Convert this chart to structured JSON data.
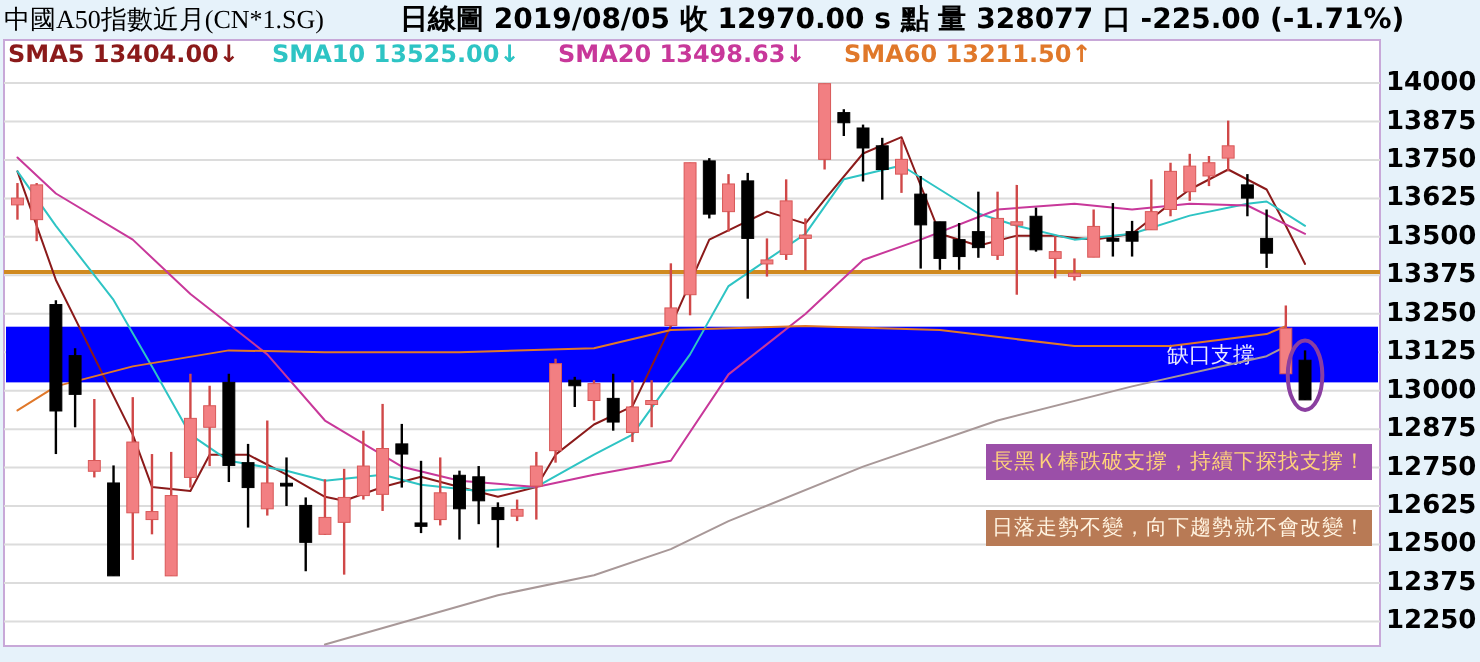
{
  "chart_data": {
    "type": "candlestick",
    "title": "中國A50指數近月(CN*1.SG)",
    "subtitle": "日線圖  2019/08/05  收 12970.00 s 點  量 328077 口  -225.00 (-1.71%)",
    "categories": [
      null,
      null,
      null,
      null,
      null,
      null,
      null,
      null,
      null,
      null,
      null,
      null,
      null,
      null,
      null,
      null,
      null,
      null,
      null,
      null,
      null,
      null,
      null,
      null,
      null,
      null,
      null,
      null,
      null,
      null,
      null,
      null,
      null,
      null,
      null,
      null,
      null,
      null,
      null,
      null,
      null,
      null,
      null,
      null,
      null,
      null,
      null,
      null,
      null,
      null,
      null,
      null,
      null,
      null,
      null,
      null,
      null,
      null,
      null,
      null,
      null,
      null,
      null,
      null,
      null,
      null,
      null,
      null
    ],
    "ohlc": [
      [
        13604,
        13675,
        13556,
        13626
      ],
      [
        13556,
        13675,
        13486,
        13669
      ],
      [
        13280,
        13294,
        12794,
        12934
      ],
      [
        13114,
        13138,
        12881,
        12988
      ],
      [
        12738,
        12973,
        12718,
        12773
      ],
      [
        12700,
        12757,
        12398,
        12398
      ],
      [
        12603,
        12979,
        12450,
        12833
      ],
      [
        12581,
        12794,
        12533,
        12607
      ],
      [
        12398,
        12801,
        12398,
        12659
      ],
      [
        12718,
        13055,
        12685,
        12910
      ],
      [
        12881,
        13016,
        12755,
        12951
      ],
      [
        13027,
        13055,
        12703,
        12757
      ],
      [
        12766,
        12827,
        12555,
        12685
      ],
      [
        12616,
        12903,
        12594,
        12700
      ],
      [
        12699,
        12783,
        12625,
        12690
      ],
      [
        12627,
        12653,
        12413,
        12507
      ],
      [
        12533,
        12712,
        12531,
        12588
      ],
      [
        12572,
        12746,
        12402,
        12653
      ],
      [
        12659,
        12870,
        12646,
        12755
      ],
      [
        12663,
        12957,
        12609,
        12812
      ],
      [
        12827,
        12892,
        12685,
        12794
      ],
      [
        12570,
        12772,
        12537,
        12559
      ],
      [
        12581,
        12783,
        12562,
        12668
      ],
      [
        12725,
        12740,
        12516,
        12616
      ],
      [
        12720,
        12755,
        12566,
        12642
      ],
      [
        12620,
        12637,
        12490,
        12581
      ],
      [
        12592,
        12646,
        12576,
        12614
      ],
      [
        12690,
        12801,
        12581,
        12755
      ],
      [
        12805,
        13104,
        12766,
        13088
      ],
      [
        13034,
        13045,
        12947,
        13016
      ],
      [
        12968,
        13034,
        12903,
        13023
      ],
      [
        12975,
        13055,
        12870,
        12898
      ],
      [
        12864,
        13034,
        12833,
        12947
      ],
      [
        12955,
        13034,
        12881,
        12968
      ],
      [
        13212,
        13414,
        13208,
        13269
      ],
      [
        13312,
        13741,
        13245,
        13741
      ],
      [
        13747,
        13756,
        13560,
        13574
      ],
      [
        13582,
        13704,
        13517,
        13672
      ],
      [
        13682,
        13708,
        13299,
        13495
      ],
      [
        13412,
        13495,
        13371,
        13425
      ],
      [
        13443,
        13687,
        13425,
        13617
      ],
      [
        13495,
        13560,
        13391,
        13506
      ],
      [
        13752,
        13998,
        13719,
        13998
      ],
      [
        13904,
        13915,
        13828,
        13871
      ],
      [
        13854,
        13865,
        13680,
        13789
      ],
      [
        13796,
        13822,
        13621,
        13719
      ],
      [
        13704,
        13817,
        13643,
        13752
      ],
      [
        13639,
        13698,
        13397,
        13539
      ],
      [
        13549,
        13549,
        13393,
        13430
      ],
      [
        13491,
        13545,
        13393,
        13436
      ],
      [
        13517,
        13647,
        13432,
        13465
      ],
      [
        13440,
        13647,
        13425,
        13560
      ],
      [
        13538,
        13669,
        13312,
        13549
      ],
      [
        13567,
        13595,
        13452,
        13458
      ],
      [
        13430,
        13502,
        13365,
        13452
      ],
      [
        13371,
        13430,
        13358,
        13382
      ],
      [
        13434,
        13589,
        13434,
        13534
      ],
      [
        13495,
        13610,
        13436,
        13486
      ],
      [
        13517,
        13552,
        13436,
        13486
      ],
      [
        13523,
        13687,
        13523,
        13582
      ],
      [
        13589,
        13741,
        13567,
        13713
      ],
      [
        13647,
        13770,
        13617,
        13730
      ],
      [
        13698,
        13763,
        13665,
        13741
      ],
      [
        13756,
        13878,
        13713,
        13796
      ],
      [
        13669,
        13704,
        13567,
        13626
      ],
      [
        13495,
        13589,
        13399,
        13447
      ],
      [
        13055,
        13277,
        13055,
        13203
      ],
      [
        13099,
        13131,
        12970,
        12970
      ]
    ],
    "series": [
      {
        "name": "SMA5 13404.00↓",
        "type": "line",
        "color": "#8b1a1a",
        "values": [
          13713,
          null,
          13360,
          null,
          null,
          null,
          12857,
          12687,
          null,
          12674,
          12792,
          null,
          12792,
          null,
          12727,
          null,
          12655,
          12642,
          null,
          12687,
          null,
          12720,
          null,
          12687,
          null,
          12655,
          null,
          12687,
          12792,
          null,
          12890,
          null,
          12949,
          null,
          13210,
          null,
          13491,
          null,
          null,
          13582,
          null,
          13543,
          13621,
          null,
          13771,
          null,
          13824,
          13667,
          13510,
          null,
          13471,
          null,
          13504,
          null,
          13504,
          null,
          13491,
          null,
          13510,
          null,
          13608,
          13654,
          null,
          13719,
          null,
          13654,
          13536,
          13412
        ]
      },
      {
        "name": "SMA10 13525.00↓",
        "type": "line",
        "color": "#2ec4c4",
        "values": [
          13713,
          null,
          13536,
          null,
          null,
          13295,
          null,
          13079,
          null,
          12857,
          null,
          12772,
          null,
          null,
          12740,
          null,
          12707,
          null,
          null,
          12727,
          null,
          12694,
          null,
          null,
          12674,
          null,
          null,
          12687,
          null,
          null,
          12792,
          null,
          12857,
          null,
          null,
          13118,
          null,
          13340,
          null,
          null,
          null,
          13510,
          null,
          13687,
          null,
          null,
          13732,
          null,
          13654,
          null,
          13576,
          null,
          13536,
          null,
          null,
          13491,
          null,
          null,
          13510,
          null,
          null,
          13569,
          null,
          null,
          13608,
          13615,
          null,
          13536
        ]
      },
      {
        "name": "SMA20 13498.63↓",
        "type": "line",
        "color": "#c8389a",
        "values": [
          13758,
          null,
          13641,
          null,
          null,
          null,
          13491,
          null,
          null,
          13314,
          null,
          null,
          null,
          13118,
          null,
          null,
          12903,
          null,
          null,
          null,
          12753,
          null,
          null,
          12707,
          null,
          null,
          null,
          12687,
          null,
          null,
          12727,
          null,
          null,
          null,
          12772,
          null,
          null,
          13053,
          null,
          null,
          null,
          13249,
          null,
          null,
          13425,
          null,
          null,
          13491,
          null,
          null,
          null,
          13589,
          null,
          null,
          null,
          13608,
          null,
          null,
          13589,
          null,
          null,
          13608,
          null,
          null,
          13602,
          null,
          null,
          13510
        ]
      },
      {
        "name": "SMA60 13211.50↑",
        "type": "line",
        "color": "#e0782a",
        "values": [
          12936,
          null,
          13014,
          null,
          null,
          null,
          13079,
          null,
          null,
          null,
          null,
          13131,
          null,
          null,
          null,
          null,
          13125,
          null,
          null,
          null,
          null,
          null,
          null,
          13125,
          null,
          null,
          null,
          null,
          null,
          null,
          13138,
          null,
          null,
          null,
          13197,
          null,
          null,
          null,
          null,
          null,
          null,
          13210,
          null,
          null,
          null,
          null,
          null,
          null,
          13197,
          null,
          null,
          null,
          null,
          null,
          null,
          13145,
          null,
          null,
          null,
          null,
          13145,
          null,
          null,
          null,
          null,
          13184,
          13210,
          null
        ]
      },
      {
        "type": "line",
        "color": "#a89898",
        "values": [
          null,
          null,
          null,
          null,
          null,
          null,
          null,
          null,
          null,
          null,
          null,
          null,
          null,
          null,
          null,
          null,
          12175,
          null,
          null,
          null,
          null,
          null,
          null,
          null,
          null,
          12335,
          null,
          null,
          null,
          null,
          12400,
          null,
          null,
          null,
          12485,
          null,
          null,
          12576,
          null,
          null,
          null,
          null,
          null,
          null,
          12753,
          null,
          null,
          null,
          null,
          null,
          null,
          12903,
          null,
          null,
          null,
          null,
          null,
          null,
          13014,
          null,
          null,
          null,
          null,
          null,
          null,
          13112,
          13144,
          null
        ]
      }
    ],
    "ylim": [
      12170,
      14140
    ],
    "yticks": [
      12250,
      12375,
      12500,
      12625,
      12750,
      12875,
      13000,
      13125,
      13250,
      13375,
      13500,
      13625,
      13750,
      13875,
      14000
    ],
    "tick_labels": "y",
    "grid": "y",
    "legend": "top left",
    "ref_lines": [
      {
        "axis": "y",
        "value": 13386,
        "color": "#d08a20"
      }
    ],
    "bands": [
      {
        "axis": "y",
        "from": 13027,
        "to": 13208,
        "label": "缺口支撐",
        "color": "#0000ff"
      }
    ],
    "annotations": [
      "長黑Ｋ棒跌破支撐，持續下探找支撐！",
      "日落走勢不變，向下趨勢就不會改變！"
    ]
  }
}
